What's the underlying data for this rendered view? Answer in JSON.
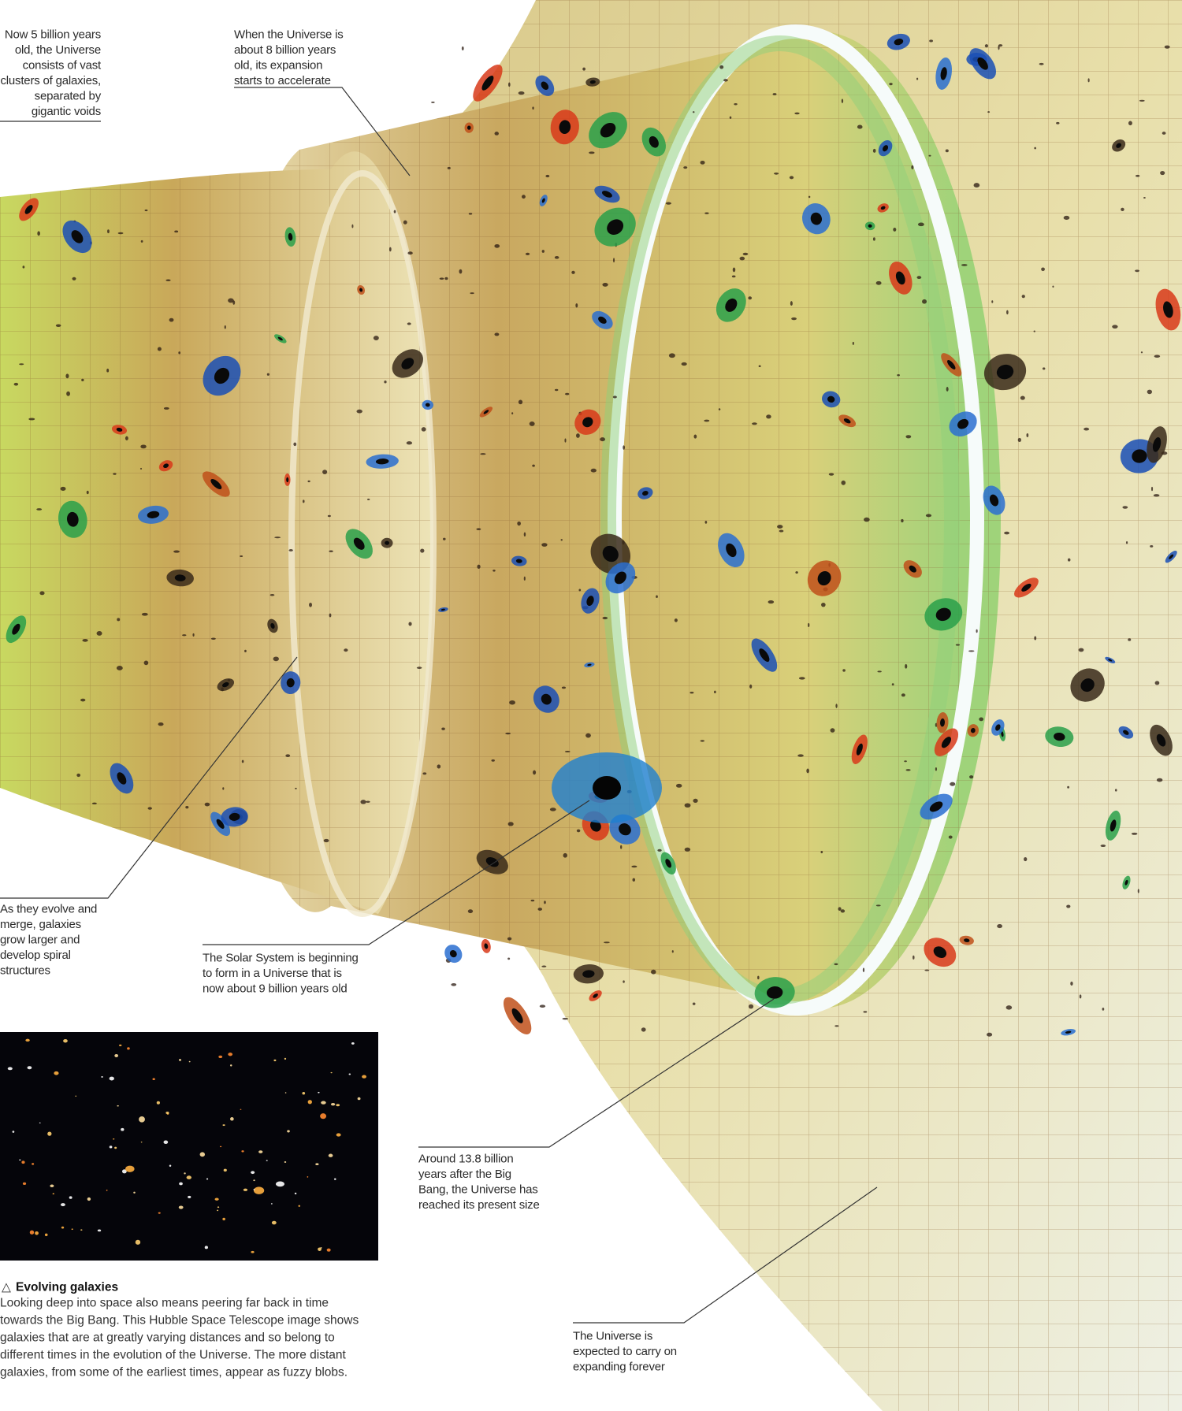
{
  "annotations": [
    {
      "lines": [
        "Now 5 billion years",
        "old, the Universe",
        "consists of vast",
        "clusters of galaxies,",
        "separated by",
        "gigantic voids"
      ]
    },
    {
      "lines": [
        "When the Universe is",
        "about 8 billion years",
        "old, its expansion",
        "starts to accelerate"
      ]
    },
    {
      "lines": [
        "As they evolve and",
        "merge, galaxies",
        "grow larger and",
        "develop spiral",
        "structures"
      ]
    },
    {
      "lines": [
        "The Solar System is beginning",
        "to form in a Universe that is",
        "now about 9 billion years old"
      ]
    },
    {
      "lines": [
        "Around 13.8 billion",
        "years after the Big",
        "Bang, the Universe has",
        "reached its present size"
      ]
    },
    {
      "lines": [
        "The Universe is",
        "expected to carry on",
        "expanding forever"
      ]
    }
  ],
  "caption": {
    "icon": "△",
    "title": "Evolving galaxies",
    "lines": [
      "Looking deep into space also means peering far back in time",
      "towards the Big Bang. This Hubble Space Telescope image shows",
      "galaxies that are at greatly varying distances and so belong to",
      "different times in the evolution of the Universe. The more distant",
      "galaxies, from some of the earliest times, appear as fuzzy blobs."
    ]
  }
}
